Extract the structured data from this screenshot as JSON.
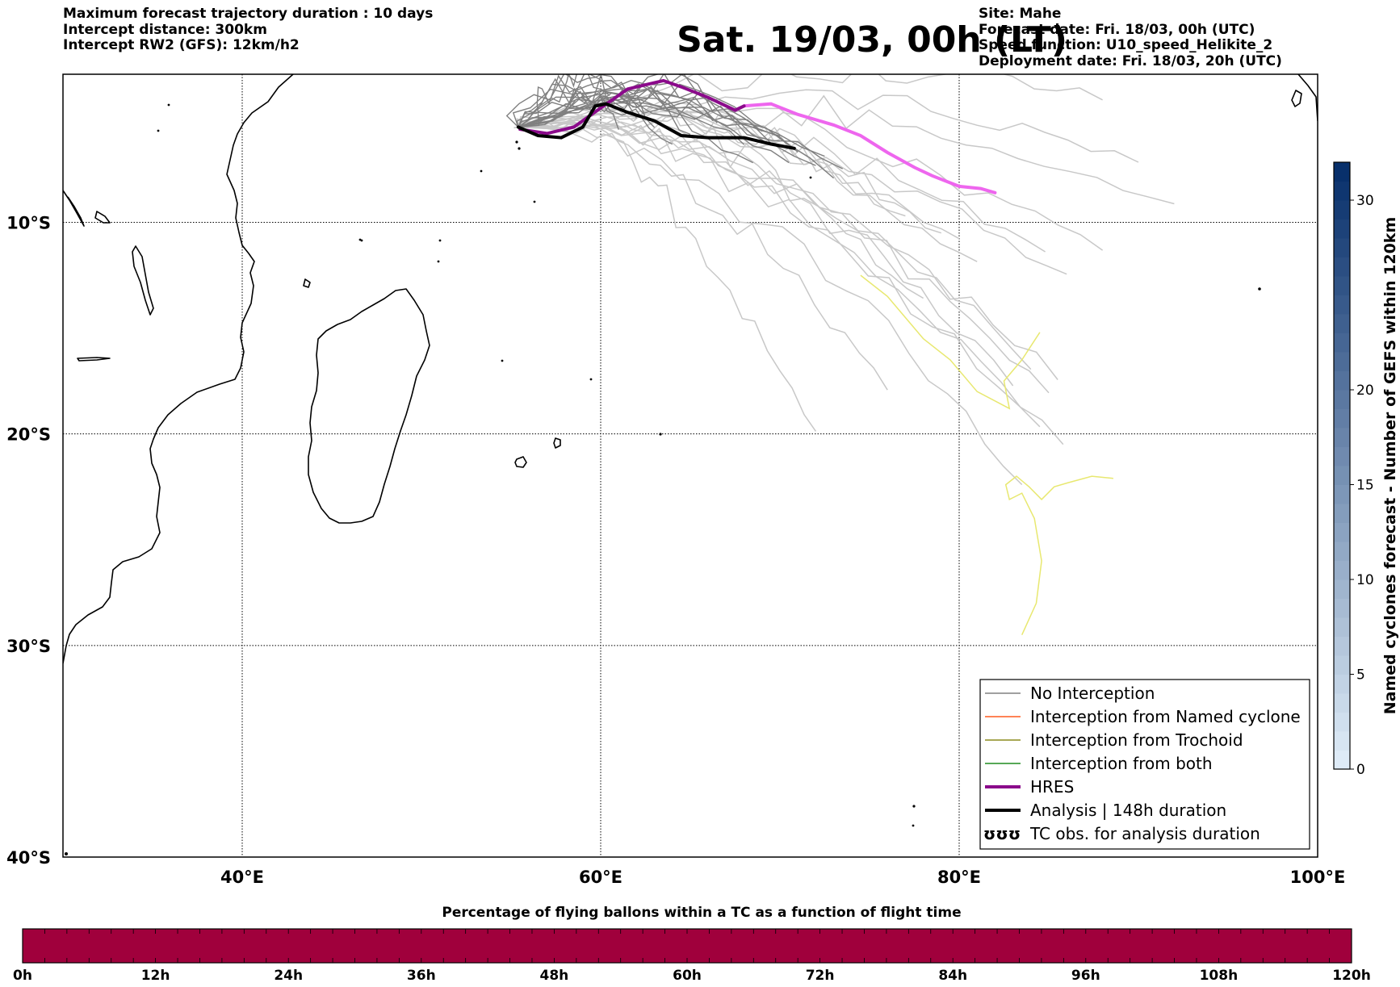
{
  "header": {
    "left_lines": [
      "Maximum forecast trajectory duration : 10 days",
      "Intercept distance: 300km",
      "Intercept RW2 (GFS):  12km/h2"
    ],
    "title": "Sat. 19/03, 00h (LT)",
    "right_lines": [
      "Site: Mahe",
      "Forecast date: Fri. 18/03, 00h (UTC)",
      "Speed function: U10_speed_Helikite_2",
      "Deployment date: Fri. 18/03, 20h (UTC)"
    ]
  },
  "map": {
    "lon_range": [
      30,
      100
    ],
    "lat_range": [
      -40,
      -3
    ],
    "lon_ticks": [
      {
        "value": 40,
        "label": "40°E"
      },
      {
        "value": 60,
        "label": "60°E"
      },
      {
        "value": 80,
        "label": "80°E"
      },
      {
        "value": 100,
        "label": "100°E"
      }
    ],
    "lat_ticks": [
      {
        "value": -10,
        "label": "10°S"
      },
      {
        "value": -20,
        "label": "20°S"
      },
      {
        "value": -30,
        "label": "30°S"
      },
      {
        "value": -40,
        "label": "40°S"
      }
    ],
    "gridlines": true,
    "colors": {
      "no_interception": "#808080",
      "ensemble_light": "#c8c8c8",
      "named_cyclone": "#ff5a1e",
      "trochoid": "#8c8c1e",
      "both": "#1e8c1e",
      "hres": "#8b0a8b",
      "hres_extension": "#ee66ee",
      "analysis": "#000000",
      "yellow_track": "#e8e870"
    },
    "legend": {
      "position": "bottom-right",
      "entries": [
        {
          "label": "No Interception",
          "color": "#808080",
          "width": 1.5
        },
        {
          "label": "Interception from Named cyclone",
          "color": "#ff5a1e",
          "width": 1.5
        },
        {
          "label": "Interception from Trochoid",
          "color": "#8c8c1e",
          "width": 1.5
        },
        {
          "label": "Interception from both",
          "color": "#1e8c1e",
          "width": 1.5
        },
        {
          "label": "HRES",
          "color": "#8b0a8b",
          "width": 4
        },
        {
          "label": "Analysis | 148h duration",
          "color": "#000000",
          "width": 4
        },
        {
          "label": "TC obs. for analysis duration",
          "symbol": "ʊʊʊ"
        }
      ]
    },
    "tracks": {
      "hres": [
        [
          55.5,
          -5.6
        ],
        [
          57,
          -5.8
        ],
        [
          58.5,
          -5.5
        ],
        [
          60,
          -4.6
        ],
        [
          61.5,
          -3.7
        ],
        [
          62.5,
          -3.5
        ],
        [
          63.5,
          -3.3
        ],
        [
          64.5,
          -3.6
        ],
        [
          66,
          -4.1
        ],
        [
          67.5,
          -4.7
        ],
        [
          68,
          -4.5
        ]
      ],
      "hres_extension": [
        [
          68,
          -4.5
        ],
        [
          69.5,
          -4.4
        ],
        [
          71,
          -4.9
        ],
        [
          73,
          -5.4
        ],
        [
          74.5,
          -5.9
        ],
        [
          76,
          -6.7
        ],
        [
          77.5,
          -7.4
        ],
        [
          78.5,
          -7.8
        ],
        [
          80,
          -8.3
        ],
        [
          81.2,
          -8.4
        ],
        [
          82,
          -8.6
        ]
      ],
      "analysis": [
        [
          55.4,
          -5.5
        ],
        [
          56.5,
          -5.9
        ],
        [
          57.8,
          -6.0
        ],
        [
          59,
          -5.5
        ],
        [
          59.7,
          -4.5
        ],
        [
          60.3,
          -4.4
        ],
        [
          61.5,
          -4.8
        ],
        [
          63,
          -5.2
        ],
        [
          64.5,
          -5.9
        ],
        [
          66,
          -6.0
        ],
        [
          68,
          -6.0
        ],
        [
          69.5,
          -6.3
        ],
        [
          70.8,
          -6.5
        ]
      ],
      "yellow": [
        [
          74.5,
          -12.5
        ],
        [
          76,
          -13.5
        ],
        [
          77,
          -14.5
        ],
        [
          78,
          -15.5
        ],
        [
          79.5,
          -16.5
        ],
        [
          81,
          -18
        ],
        [
          82.8,
          -18.8
        ],
        [
          82.5,
          -17.5
        ],
        [
          83.5,
          -16.5
        ],
        [
          84.5,
          -15.2
        ]
      ],
      "yellow2": [
        [
          83.5,
          -29.5
        ],
        [
          84.3,
          -28
        ],
        [
          84.6,
          -26
        ],
        [
          84.2,
          -24
        ],
        [
          83.5,
          -22.8
        ],
        [
          82.8,
          -23.1
        ],
        [
          82.6,
          -22.4
        ],
        [
          83.2,
          -22
        ],
        [
          83.9,
          -22.5
        ],
        [
          84.6,
          -23.1
        ],
        [
          85.3,
          -22.5
        ],
        [
          86.1,
          -22.3
        ],
        [
          87.4,
          -22
        ],
        [
          88.6,
          -22.1
        ]
      ]
    }
  },
  "colorbar_right": {
    "label": "Named cyclones forecast - Number of GEFS within 120km",
    "min": 0,
    "max": 32,
    "ticks": [
      0,
      5,
      10,
      15,
      20,
      30
    ]
  },
  "bottom_bar": {
    "title": "Percentage of flying ballons within a TC as a function of flight time",
    "color": "#a0003c",
    "ticks": [
      "0h",
      "12h",
      "24h",
      "36h",
      "48h",
      "60h",
      "72h",
      "84h",
      "96h",
      "108h",
      "120h"
    ]
  }
}
